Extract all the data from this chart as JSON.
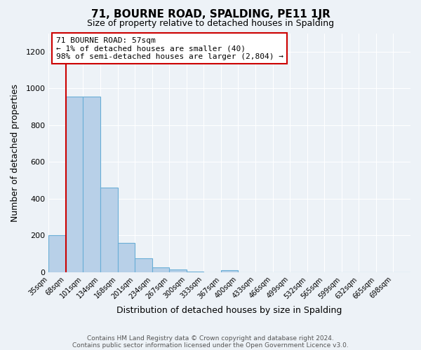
{
  "title": "71, BOURNE ROAD, SPALDING, PE11 1JR",
  "subtitle": "Size of property relative to detached houses in Spalding",
  "xlabel": "Distribution of detached houses by size in Spalding",
  "ylabel": "Number of detached properties",
  "bar_labels": [
    "35sqm",
    "68sqm",
    "101sqm",
    "134sqm",
    "168sqm",
    "201sqm",
    "234sqm",
    "267sqm",
    "300sqm",
    "333sqm",
    "367sqm",
    "400sqm",
    "433sqm",
    "466sqm",
    "499sqm",
    "532sqm",
    "565sqm",
    "599sqm",
    "632sqm",
    "665sqm",
    "698sqm"
  ],
  "bar_values": [
    200,
    955,
    955,
    460,
    160,
    75,
    25,
    15,
    5,
    0,
    10,
    0,
    0,
    0,
    0,
    0,
    0,
    0,
    0,
    0,
    0
  ],
  "bar_color": "#b8d0e8",
  "bar_edgecolor": "#6aaed6",
  "annotation_line1": "71 BOURNE ROAD: 57sqm",
  "annotation_line2": "← 1% of detached houses are smaller (40)",
  "annotation_line3": "98% of semi-detached houses are larger (2,804) →",
  "ylim": [
    0,
    1300
  ],
  "yticks": [
    0,
    200,
    400,
    600,
    800,
    1000,
    1200
  ],
  "footer1": "Contains HM Land Registry data © Crown copyright and database right 2024.",
  "footer2": "Contains public sector information licensed under the Open Government Licence v3.0.",
  "bg_color": "#edf2f7",
  "plot_bg_color": "#edf2f7",
  "annotation_box_facecolor": "#ffffff",
  "annotation_border_color": "#cc0000",
  "red_line_color": "#cc0000",
  "grid_color": "#ffffff",
  "title_fontsize": 11,
  "subtitle_fontsize": 9,
  "xlabel_fontsize": 9,
  "ylabel_fontsize": 9,
  "tick_fontsize": 7,
  "annotation_fontsize": 8,
  "footer_fontsize": 6.5
}
